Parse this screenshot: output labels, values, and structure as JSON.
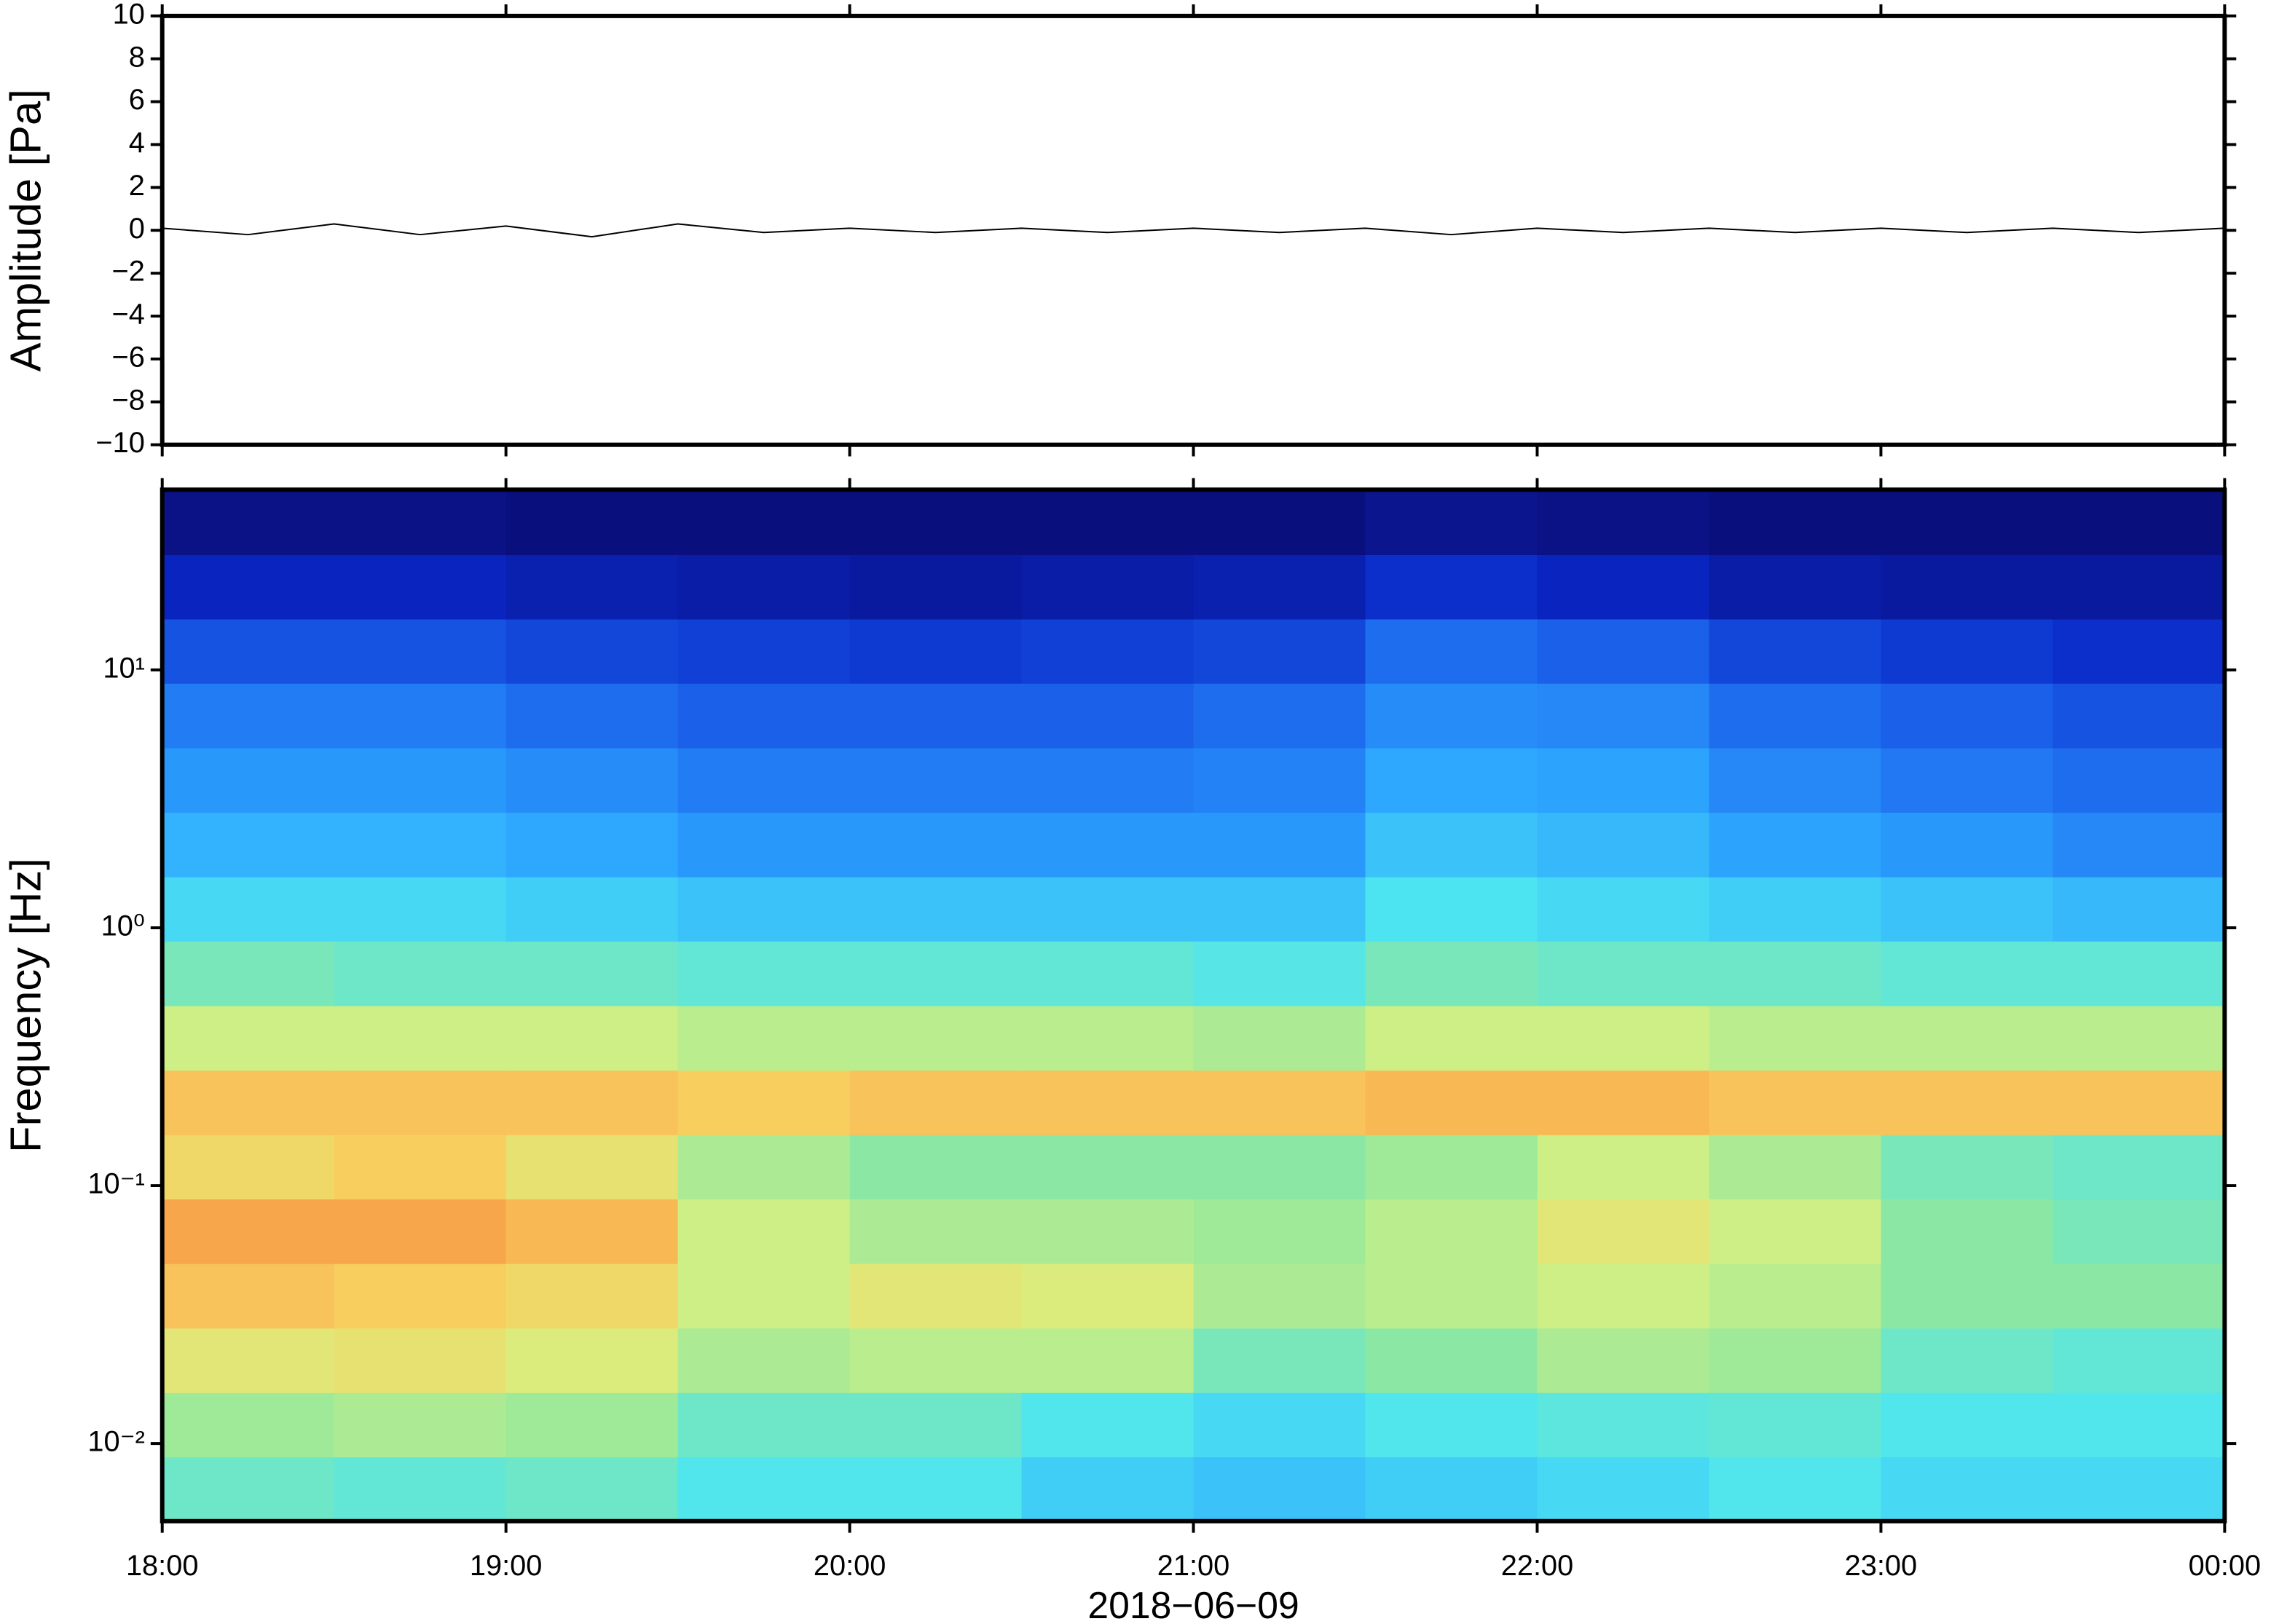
{
  "chart_data": [
    {
      "type": "line",
      "ylabel": "Amplitude [Pa]",
      "xlim": [
        18,
        24
      ],
      "xticks": [
        18,
        19,
        20,
        21,
        22,
        23,
        24
      ],
      "ylim": [
        -10,
        10
      ],
      "yticks": [
        {
          "value": -10,
          "label": "−10"
        },
        {
          "value": -8,
          "label": "−8"
        },
        {
          "value": -6,
          "label": "−6"
        },
        {
          "value": -4,
          "label": "−4"
        },
        {
          "value": -2,
          "label": "−2"
        },
        0,
        2,
        4,
        6,
        8,
        10
      ],
      "color": "#000000",
      "x": [
        18,
        18.25,
        18.5,
        18.75,
        19,
        19.25,
        19.5,
        19.75,
        20,
        20.25,
        20.5,
        20.75,
        21,
        21.25,
        21.5,
        21.75,
        22,
        22.25,
        22.5,
        22.75,
        23,
        23.25,
        23.5,
        23.75,
        24
      ],
      "values": [
        0.1,
        -0.2,
        0.3,
        -0.2,
        0.2,
        -0.3,
        0.3,
        -0.1,
        0.1,
        -0.1,
        0.1,
        -0.1,
        0.1,
        -0.1,
        0.1,
        -0.2,
        0.1,
        -0.1,
        0.1,
        -0.1,
        0.1,
        -0.1,
        0.1,
        -0.1,
        0.1
      ]
    },
    {
      "type": "heatmap",
      "ylabel": "Frequency [Hz]",
      "xlabel": "2018−06−09",
      "xlim": [
        18,
        24
      ],
      "xticks": [
        {
          "value": 18,
          "label": "18:00"
        },
        {
          "value": 19,
          "label": "19:00"
        },
        {
          "value": 20,
          "label": "20:00"
        },
        {
          "value": 21,
          "label": "21:00"
        },
        {
          "value": 22,
          "label": "22:00"
        },
        {
          "value": 23,
          "label": "23:00"
        },
        {
          "value": 24,
          "label": "00:00"
        }
      ],
      "ylim": [
        0.005,
        50
      ],
      "log_y": true,
      "yticks": [
        {
          "value": 0.01,
          "label": "10⁻²"
        },
        {
          "value": 0.1,
          "label": "10⁻¹"
        },
        {
          "value": 1,
          "label": "10⁰"
        },
        {
          "value": 10,
          "label": "10¹"
        }
      ],
      "x_edges": [
        18,
        18.5,
        19,
        19.5,
        20,
        20.5,
        21,
        21.5,
        22,
        22.5,
        23,
        23.5,
        24
      ],
      "y_edges": [
        0.005,
        0.0089,
        0.0158,
        0.0281,
        0.05,
        0.089,
        0.158,
        0.281,
        0.5,
        0.89,
        1.58,
        2.81,
        5,
        8.9,
        15.8,
        28.1,
        50
      ],
      "zlim": [
        0,
        1
      ],
      "colormap": [
        "#0a0a6e",
        "#0a28c8",
        "#1e6ef0",
        "#2eaaff",
        "#4ee6f0",
        "#8ee8a0",
        "#d8f080",
        "#f8d060",
        "#f89040",
        "#e83020"
      ],
      "z": [
        [
          0.5,
          0.48,
          0.5,
          0.45,
          0.45,
          0.4,
          0.38,
          0.4,
          0.42,
          0.45,
          0.42,
          0.42
        ],
        [
          0.58,
          0.6,
          0.58,
          0.5,
          0.5,
          0.45,
          0.42,
          0.45,
          0.47,
          0.48,
          0.45,
          0.45
        ],
        [
          0.7,
          0.72,
          0.68,
          0.6,
          0.62,
          0.62,
          0.52,
          0.55,
          0.6,
          0.58,
          0.5,
          0.48
        ],
        [
          0.8,
          0.78,
          0.75,
          0.65,
          0.7,
          0.68,
          0.6,
          0.62,
          0.65,
          0.62,
          0.55,
          0.55
        ],
        [
          0.85,
          0.85,
          0.82,
          0.65,
          0.6,
          0.6,
          0.58,
          0.62,
          0.7,
          0.65,
          0.55,
          0.52
        ],
        [
          0.75,
          0.78,
          0.72,
          0.6,
          0.55,
          0.55,
          0.55,
          0.58,
          0.65,
          0.6,
          0.52,
          0.5
        ],
        [
          0.8,
          0.8,
          0.8,
          0.78,
          0.8,
          0.8,
          0.8,
          0.82,
          0.82,
          0.8,
          0.8,
          0.8
        ],
        [
          0.65,
          0.65,
          0.65,
          0.62,
          0.62,
          0.62,
          0.6,
          0.65,
          0.65,
          0.62,
          0.62,
          0.62
        ],
        [
          0.52,
          0.5,
          0.5,
          0.48,
          0.48,
          0.48,
          0.46,
          0.52,
          0.5,
          0.5,
          0.48,
          0.48
        ],
        [
          0.42,
          0.42,
          0.4,
          0.38,
          0.38,
          0.38,
          0.38,
          0.44,
          0.42,
          0.4,
          0.38,
          0.36
        ],
        [
          0.35,
          0.35,
          0.33,
          0.3,
          0.3,
          0.3,
          0.3,
          0.38,
          0.36,
          0.32,
          0.3,
          0.27
        ],
        [
          0.3,
          0.3,
          0.28,
          0.25,
          0.25,
          0.25,
          0.26,
          0.33,
          0.32,
          0.27,
          0.24,
          0.22
        ],
        [
          0.25,
          0.25,
          0.22,
          0.2,
          0.2,
          0.2,
          0.22,
          0.28,
          0.27,
          0.22,
          0.2,
          0.18
        ],
        [
          0.18,
          0.18,
          0.16,
          0.15,
          0.14,
          0.15,
          0.16,
          0.22,
          0.2,
          0.16,
          0.14,
          0.12
        ],
        [
          0.1,
          0.1,
          0.08,
          0.07,
          0.06,
          0.07,
          0.08,
          0.12,
          0.1,
          0.07,
          0.06,
          0.06
        ],
        [
          0.03,
          0.03,
          0.02,
          0.02,
          0.02,
          0.02,
          0.02,
          0.04,
          0.03,
          0.02,
          0.02,
          0.02
        ]
      ]
    }
  ]
}
